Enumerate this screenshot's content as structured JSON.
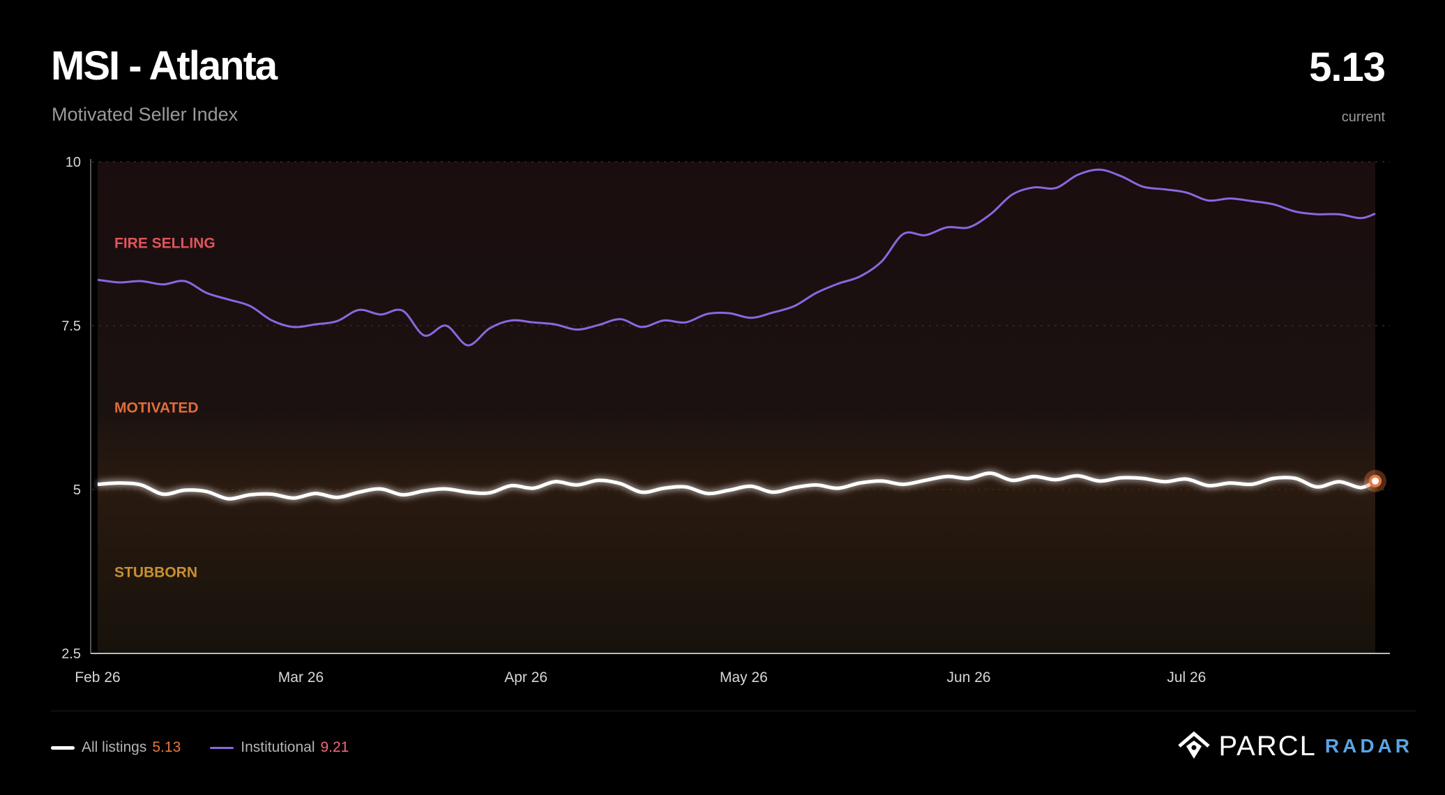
{
  "header": {
    "title": "MSI - Atlanta",
    "subtitle": "Motivated Seller Index",
    "current_value": "5.13",
    "current_label": "current"
  },
  "zones": [
    {
      "label": "FIRE SELLING",
      "color": "#e0545c"
    },
    {
      "label": "MOTIVATED",
      "color": "#e06c3a"
    },
    {
      "label": "STUBBORN",
      "color": "#c9902e"
    }
  ],
  "legend": {
    "all_label": "All listings",
    "all_value": "5.13",
    "inst_label": "Institutional",
    "inst_value": "9.21"
  },
  "brand": {
    "name": "PARCL",
    "sub": "RADAR"
  },
  "colors": {
    "background": "#000000",
    "all_listings_line": "#ffffff",
    "institutional_line": "#8b67e0",
    "accent_value": "#e9793f"
  },
  "chart_data": {
    "type": "line",
    "title": "MSI - Atlanta",
    "xlabel": "",
    "ylabel": "",
    "ylim": [
      2.5,
      10
    ],
    "yticks": [
      "10",
      "7.5",
      "5",
      "2.5"
    ],
    "xticks": [
      "Feb 26",
      "Mar 26",
      "Apr 26",
      "May 26",
      "Jun 26",
      "Jul 26"
    ],
    "x": [
      "2026-02-01",
      "2026-02-04",
      "2026-02-07",
      "2026-02-10",
      "2026-02-13",
      "2026-02-16",
      "2026-02-19",
      "2026-02-22",
      "2026-02-25",
      "2026-02-28",
      "2026-03-03",
      "2026-03-06",
      "2026-03-09",
      "2026-03-12",
      "2026-03-15",
      "2026-03-18",
      "2026-03-21",
      "2026-03-24",
      "2026-03-27",
      "2026-03-30",
      "2026-04-02",
      "2026-04-05",
      "2026-04-08",
      "2026-04-11",
      "2026-04-14",
      "2026-04-17",
      "2026-04-20",
      "2026-04-23",
      "2026-04-26",
      "2026-04-29",
      "2026-05-02",
      "2026-05-05",
      "2026-05-08",
      "2026-05-11",
      "2026-05-14",
      "2026-05-17",
      "2026-05-20",
      "2026-05-23",
      "2026-05-26",
      "2026-05-29",
      "2026-06-01",
      "2026-06-04",
      "2026-06-07",
      "2026-06-10",
      "2026-06-13",
      "2026-06-16",
      "2026-06-19",
      "2026-06-22",
      "2026-06-25",
      "2026-06-28",
      "2026-07-01",
      "2026-07-04",
      "2026-07-07",
      "2026-07-10",
      "2026-07-13",
      "2026-07-16",
      "2026-07-19",
      "2026-07-22",
      "2026-07-25",
      "2026-07-27"
    ],
    "series": [
      {
        "name": "All listings",
        "color": "#ffffff",
        "values": [
          5.08,
          5.1,
          5.07,
          4.93,
          4.99,
          4.97,
          4.86,
          4.92,
          4.93,
          4.87,
          4.94,
          4.88,
          4.96,
          5.01,
          4.92,
          4.98,
          5.01,
          4.96,
          4.95,
          5.06,
          5.02,
          5.12,
          5.07,
          5.14,
          5.09,
          4.96,
          5.02,
          5.04,
          4.94,
          4.99,
          5.05,
          4.96,
          5.03,
          5.07,
          5.02,
          5.1,
          5.13,
          5.08,
          5.14,
          5.2,
          5.17,
          5.25,
          5.14,
          5.2,
          5.15,
          5.21,
          5.13,
          5.18,
          5.17,
          5.12,
          5.16,
          5.06,
          5.1,
          5.08,
          5.17,
          5.17,
          5.04,
          5.12,
          5.03,
          5.13
        ]
      },
      {
        "name": "Institutional",
        "color": "#8b67e0",
        "values": [
          8.2,
          8.16,
          8.18,
          8.13,
          8.18,
          8.0,
          7.9,
          7.8,
          7.58,
          7.48,
          7.52,
          7.57,
          7.74,
          7.67,
          7.73,
          7.35,
          7.5,
          7.2,
          7.46,
          7.58,
          7.55,
          7.52,
          7.44,
          7.51,
          7.6,
          7.48,
          7.58,
          7.55,
          7.68,
          7.69,
          7.62,
          7.7,
          7.8,
          8.0,
          8.14,
          8.25,
          8.48,
          8.9,
          8.88,
          9.0,
          9.0,
          9.2,
          9.5,
          9.61,
          9.6,
          9.8,
          9.88,
          9.78,
          9.62,
          9.58,
          9.53,
          9.41,
          9.44,
          9.4,
          9.35,
          9.24,
          9.2,
          9.2,
          9.14,
          9.21
        ]
      }
    ],
    "legend": "bottom-left",
    "grid": false
  }
}
